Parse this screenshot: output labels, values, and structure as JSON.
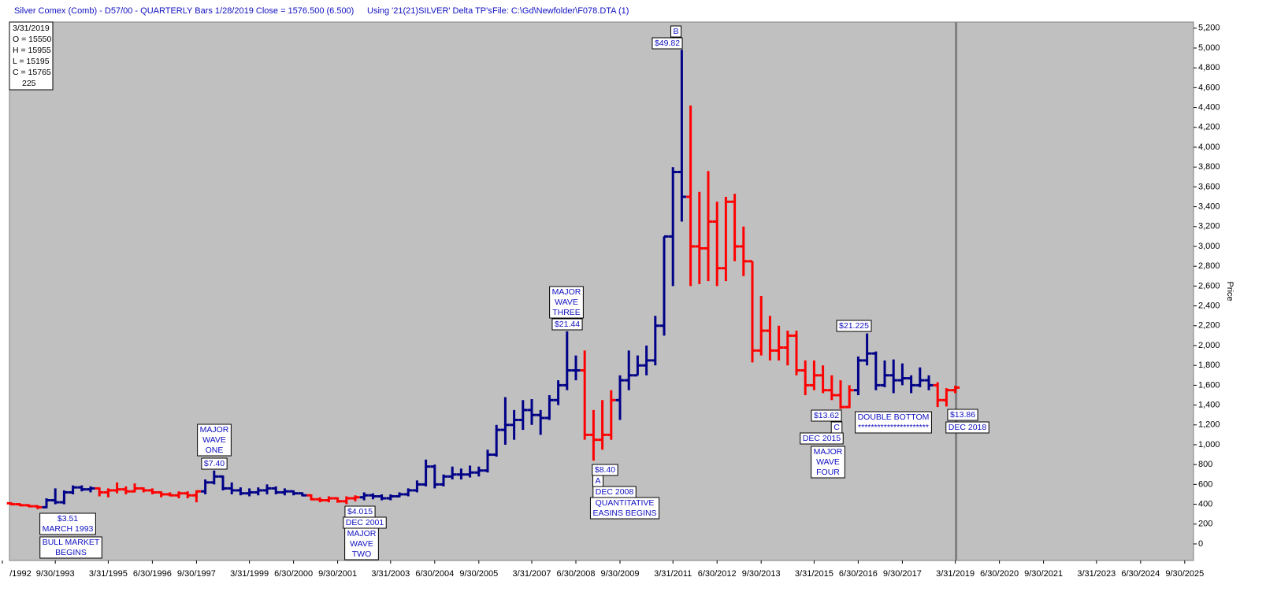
{
  "chart_data": {
    "type": "ohlc",
    "header": [
      "Silver Comex (Comb) - D57/00  - QUARTERLY Bars  1/28/2019 Close = 1576.500 (6.500)",
      "Using '21(21)SILVER' Delta TP's",
      "File: C:\\Gd\\Newfolder\\F078.DTA (1)"
    ],
    "info": [
      "3/31/2019",
      "O = 15550",
      "H = 15955",
      "L = 15195",
      "C = 15765",
      "225"
    ],
    "y_axis_label": "Price",
    "ylim": [
      -167,
      5262
    ],
    "yticks": [
      0,
      200,
      400,
      600,
      800,
      {
        "value": 1000,
        "label": "1,000"
      },
      {
        "value": 1200,
        "label": "1,200"
      },
      {
        "value": 1400,
        "label": "1,400"
      },
      {
        "value": 1600,
        "label": "1,600"
      },
      {
        "value": 1800,
        "label": "1,800"
      },
      {
        "value": 2000,
        "label": "2,000"
      },
      {
        "value": 2200,
        "label": "2,200"
      },
      {
        "value": 2400,
        "label": "2,400"
      },
      {
        "value": 2600,
        "label": "2,600"
      },
      {
        "value": 2800,
        "label": "2,800"
      },
      {
        "value": 3000,
        "label": "3,000"
      },
      {
        "value": 3200,
        "label": "3,200"
      },
      {
        "value": 3400,
        "label": "3,400"
      },
      {
        "value": 3600,
        "label": "3,600"
      },
      {
        "value": 3800,
        "label": "3,800"
      },
      {
        "value": 4000,
        "label": "4,000"
      },
      {
        "value": 4200,
        "label": "4,200"
      },
      {
        "value": 4400,
        "label": "4,400"
      },
      {
        "value": 4600,
        "label": "4,600"
      },
      {
        "value": 4800,
        "label": "4,800"
      },
      {
        "value": 5000,
        "label": "5,000"
      },
      {
        "value": 5200,
        "label": "5,200"
      }
    ],
    "categories": [
      "/1992",
      null,
      null,
      null,
      null,
      null,
      "9/30/1993",
      null,
      null,
      null,
      null,
      null,
      "3/31/1995",
      null,
      null,
      null,
      null,
      "6/30/1996",
      null,
      null,
      null,
      null,
      "9/30/1997",
      null,
      null,
      null,
      null,
      null,
      "3/31/1999",
      null,
      null,
      null,
      null,
      "6/30/2000",
      null,
      null,
      null,
      null,
      "9/30/2001",
      null,
      null,
      null,
      null,
      null,
      "3/31/2003",
      null,
      null,
      null,
      null,
      "6/30/2004",
      null,
      null,
      null,
      null,
      "9/30/2005",
      null,
      null,
      null,
      null,
      null,
      "3/31/2007",
      null,
      null,
      null,
      null,
      "6/30/2008",
      null,
      null,
      null,
      null,
      "9/30/2009",
      null,
      null,
      null,
      null,
      null,
      "3/31/2011",
      null,
      null,
      null,
      null,
      "6/30/2012",
      null,
      null,
      null,
      null,
      "9/30/2013",
      null,
      null,
      null,
      null,
      null,
      "3/31/2015",
      null,
      null,
      null,
      null,
      "6/30/2016",
      null,
      null,
      null,
      null,
      "9/30/2017",
      null,
      null,
      null,
      null,
      null,
      "3/31/2019",
      null,
      null,
      null,
      null,
      "6/30/2020",
      null,
      null,
      null,
      null,
      "9/30/2021",
      null,
      null,
      null,
      null,
      null,
      "3/31/2023",
      null,
      null,
      null,
      null,
      "6/30/2024",
      null,
      null,
      null,
      null,
      "9/30/2025",
      null
    ],
    "open": [
      null,
      410,
      400,
      390,
      380,
      370,
      440,
      420,
      520,
      570,
      550,
      560,
      520,
      540,
      550,
      530,
      560,
      540,
      520,
      500,
      490,
      510,
      490,
      530,
      620,
      680,
      560,
      540,
      510,
      520,
      540,
      560,
      520,
      530,
      510,
      490,
      450,
      440,
      460,
      430,
      460,
      470,
      490,
      480,
      460,
      480,
      500,
      540,
      600,
      780,
      600,
      680,
      700,
      700,
      720,
      740,
      900,
      1150,
      1200,
      1250,
      1350,
      1300,
      1270,
      1450,
      1600,
      1750,
      1750,
      1100,
      1050,
      1100,
      1450,
      1650,
      1700,
      1800,
      1850,
      2200,
      3100,
      3750,
      3500,
      3000,
      2980,
      3250,
      2780,
      3450,
      3000,
      2850,
      1950,
      2150,
      1950,
      1980,
      2100,
      1750,
      1600,
      1700,
      1550,
      1500,
      1380,
      1550,
      1850,
      1920,
      1600,
      1700,
      1650,
      1670,
      1600,
      1650,
      1600,
      1450,
      1550,
      null,
      null,
      null,
      null,
      null,
      null,
      null,
      null,
      null,
      null,
      null,
      null,
      null,
      null,
      null,
      null,
      null,
      null,
      null,
      null,
      null,
      null,
      null,
      null,
      null,
      null,
      null
    ],
    "high": [
      null,
      420,
      410,
      400,
      390,
      460,
      560,
      540,
      590,
      590,
      580,
      570,
      560,
      620,
      580,
      610,
      570,
      560,
      530,
      520,
      530,
      530,
      540,
      650,
      740,
      690,
      620,
      570,
      560,
      570,
      600,
      580,
      560,
      540,
      520,
      500,
      470,
      480,
      470,
      480,
      490,
      520,
      510,
      500,
      500,
      520,
      560,
      640,
      850,
      800,
      700,
      780,
      760,
      790,
      780,
      950,
      1200,
      1480,
      1350,
      1450,
      1460,
      1350,
      1500,
      1650,
      2144,
      1900,
      1950,
      1350,
      1450,
      1550,
      1700,
      1950,
      1900,
      2000,
      2300,
      3100,
      3800,
      4982,
      4420,
      3550,
      3760,
      3450,
      3500,
      3530,
      3200,
      2850,
      2500,
      2300,
      2200,
      2150,
      2150,
      1850,
      1850,
      1800,
      1700,
      1650,
      1600,
      1890,
      2122,
      1940,
      1850,
      1860,
      1820,
      1700,
      1780,
      1700,
      1630,
      1570,
      1596,
      null,
      null,
      null,
      null,
      null,
      null,
      null,
      null,
      null,
      null,
      null,
      null,
      null,
      null,
      null,
      null,
      null,
      null,
      null,
      null,
      null,
      null,
      null,
      null,
      null,
      null,
      null
    ],
    "low": [
      null,
      390,
      380,
      370,
      351,
      360,
      400,
      400,
      500,
      530,
      520,
      480,
      470,
      510,
      500,
      520,
      520,
      500,
      470,
      480,
      460,
      460,
      420,
      500,
      600,
      540,
      500,
      490,
      480,
      490,
      500,
      500,
      490,
      490,
      480,
      440,
      420,
      420,
      415,
      401.5,
      430,
      440,
      450,
      440,
      440,
      470,
      480,
      520,
      580,
      560,
      580,
      650,
      650,
      670,
      680,
      720,
      880,
      1000,
      1050,
      1150,
      1200,
      1100,
      1250,
      1400,
      1550,
      1650,
      1050,
      840,
      950,
      1050,
      1250,
      1550,
      1700,
      1700,
      1800,
      2100,
      2600,
      3250,
      2600,
      2620,
      2650,
      2600,
      2650,
      2850,
      2700,
      1830,
      1900,
      1850,
      1850,
      1800,
      1700,
      1500,
      1550,
      1520,
      1450,
      1362,
      1370,
      1500,
      1800,
      1550,
      1580,
      1520,
      1600,
      1520,
      1580,
      1550,
      1380,
      1386,
      1520,
      null,
      null,
      null,
      null,
      null,
      null,
      null,
      null,
      null,
      null,
      null,
      null,
      null,
      null,
      null,
      null,
      null,
      null,
      null,
      null,
      null,
      null,
      null,
      null,
      null,
      null,
      null
    ],
    "close": [
      null,
      400,
      390,
      380,
      370,
      440,
      420,
      520,
      570,
      550,
      560,
      520,
      540,
      550,
      530,
      560,
      540,
      520,
      500,
      490,
      510,
      490,
      530,
      620,
      680,
      560,
      540,
      510,
      520,
      540,
      560,
      520,
      530,
      510,
      490,
      450,
      440,
      460,
      430,
      460,
      470,
      490,
      480,
      460,
      480,
      500,
      540,
      600,
      780,
      600,
      680,
      700,
      700,
      720,
      740,
      900,
      1150,
      1200,
      1250,
      1350,
      1300,
      1270,
      1450,
      1600,
      1750,
      1750,
      1100,
      1050,
      1100,
      1450,
      1650,
      1700,
      1800,
      1850,
      2200,
      3100,
      3750,
      3500,
      3000,
      2980,
      3250,
      2780,
      3450,
      3000,
      2850,
      1950,
      2150,
      1950,
      1980,
      2100,
      1750,
      1600,
      1700,
      1550,
      1500,
      1380,
      1550,
      1850,
      1920,
      1600,
      1700,
      1650,
      1670,
      1600,
      1650,
      1600,
      1450,
      1550,
      1576.5,
      null,
      null,
      null,
      null,
      null,
      null,
      null,
      null,
      null,
      null,
      null,
      null,
      null,
      null,
      null,
      null,
      null,
      null,
      null,
      null,
      null,
      null,
      null,
      null,
      null,
      null,
      null
    ],
    "colors": [
      null,
      "#f00",
      "#f00",
      "#f00",
      "#f00",
      "#008",
      "#008",
      "#008",
      "#008",
      "#008",
      "#008",
      "#f00",
      "#f00",
      "#f00",
      "#f00",
      "#f00",
      "#f00",
      "#f00",
      "#f00",
      "#f00",
      "#f00",
      "#f00",
      "#f00",
      "#008",
      "#008",
      "#008",
      "#008",
      "#008",
      "#008",
      "#008",
      "#008",
      "#008",
      "#008",
      "#008",
      "#008",
      "#f00",
      "#f00",
      "#f00",
      "#f00",
      "#f00",
      "#f00",
      "#008",
      "#008",
      "#008",
      "#008",
      "#008",
      "#008",
      "#008",
      "#008",
      "#008",
      "#008",
      "#008",
      "#008",
      "#008",
      "#008",
      "#008",
      "#008",
      "#008",
      "#008",
      "#008",
      "#008",
      "#008",
      "#008",
      "#008",
      "#008",
      "#008",
      "#f00",
      "#f00",
      "#f00",
      "#f00",
      "#008",
      "#008",
      "#008",
      "#008",
      "#008",
      "#008",
      "#008",
      "#008",
      "#f00",
      "#f00",
      "#f00",
      "#f00",
      "#f00",
      "#f00",
      "#f00",
      "#f00",
      "#f00",
      "#f00",
      "#f00",
      "#f00",
      "#f00",
      "#f00",
      "#f00",
      "#f00",
      "#f00",
      "#f00",
      "#f00",
      "#008",
      "#008",
      "#008",
      "#008",
      "#008",
      "#008",
      "#008",
      "#008",
      "#008",
      "#f00",
      "#f00",
      "#f00",
      null,
      null,
      null,
      null,
      null,
      null,
      null,
      null,
      null,
      null,
      null,
      null,
      null,
      null,
      null,
      null,
      null,
      null,
      null,
      null,
      null,
      null,
      null,
      null,
      null,
      null,
      null
    ],
    "annotations": [
      [
        "B"
      ],
      [
        "$49.82"
      ],
      [
        "MAJOR",
        "WAVE",
        "THREE"
      ],
      [
        "$21.44"
      ],
      [
        "MAJOR",
        "WAVE",
        "ONE"
      ],
      [
        "$7.40"
      ],
      [
        "$3.51",
        "MARCH 1993"
      ],
      [
        "BULL MARKET",
        "BEGINS"
      ],
      [
        "$4.015"
      ],
      [
        "DEC 2001"
      ],
      [
        "MAJOR",
        "WAVE",
        "TWO"
      ],
      [
        "$8.40"
      ],
      [
        "A"
      ],
      [
        "DEC 2008"
      ],
      [
        "QUANTITATIVE",
        "EASINS BEGINS"
      ],
      [
        "$21.225"
      ],
      [
        "$13.62"
      ],
      [
        "C"
      ],
      [
        "DEC 2015"
      ],
      [
        "MAJOR",
        "WAVE",
        "FOUR"
      ],
      [
        "DOUBLE BOTTOM",
        "**********************"
      ],
      [
        "$13.86"
      ],
      [
        "DEC 2018"
      ]
    ]
  }
}
